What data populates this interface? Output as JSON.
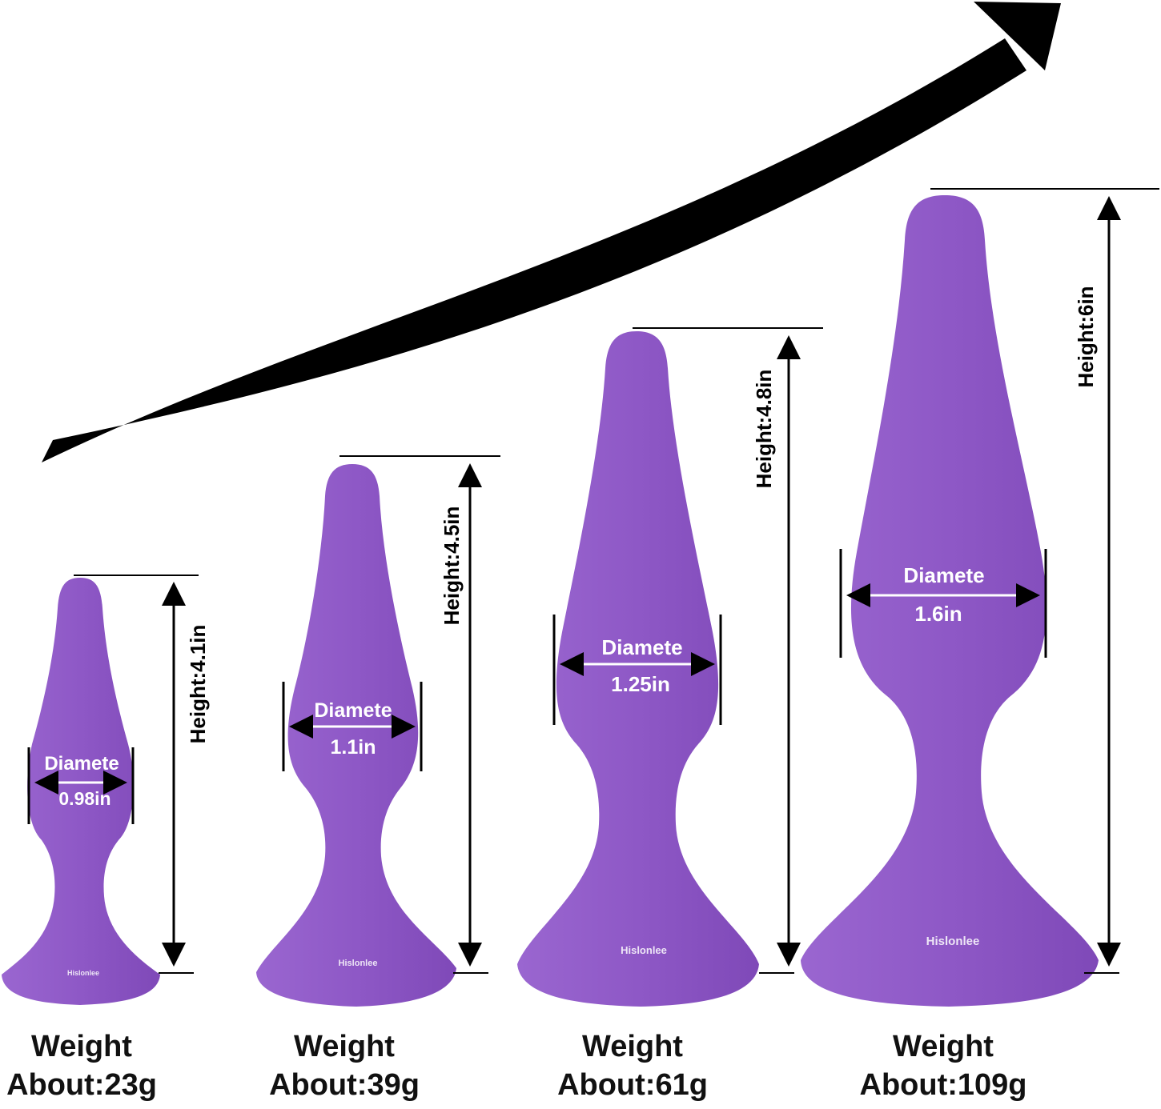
{
  "colors": {
    "product": "#8e58c6",
    "product_shade": "#7d47b5",
    "annotation_text": "#ffffff",
    "line": "#000000"
  },
  "products": [
    {
      "height": "Height:4.1in",
      "diameter_label": "Diamete",
      "diameter": "0.98in",
      "brand": "Hislonlee",
      "weight_label": "Weight",
      "weight": "About:23g"
    },
    {
      "height": "Height:4.5in",
      "diameter_label": "Diamete",
      "diameter": "1.1in",
      "brand": "Hislonlee",
      "weight_label": "Weight",
      "weight": "About:39g"
    },
    {
      "height": "Height:4.8in",
      "diameter_label": "Diamete",
      "diameter": "1.25in",
      "brand": "Hislonlee",
      "weight_label": "Weight",
      "weight": "About:61g"
    },
    {
      "height": "Height:6in",
      "diameter_label": "Diamete",
      "diameter": "1.6in",
      "brand": "Hislonlee",
      "weight_label": "Weight",
      "weight": "About:109g"
    }
  ]
}
